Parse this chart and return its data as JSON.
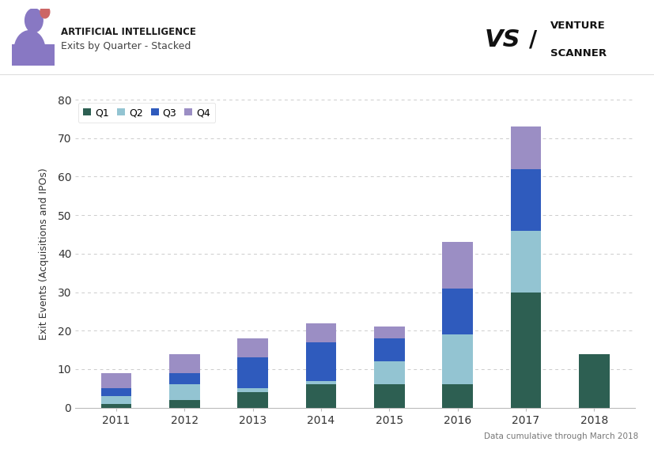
{
  "years": [
    "2011",
    "2012",
    "2013",
    "2014",
    "2015",
    "2016",
    "2017",
    "2018"
  ],
  "Q1": [
    1,
    2,
    4,
    6,
    6,
    6,
    30,
    14
  ],
  "Q2": [
    2,
    4,
    1,
    1,
    6,
    13,
    16,
    0
  ],
  "Q3": [
    2,
    3,
    8,
    10,
    6,
    12,
    16,
    0
  ],
  "Q4": [
    4,
    5,
    5,
    5,
    3,
    12,
    11,
    0
  ],
  "colors": {
    "Q1": "#2d5f52",
    "Q2": "#93c4d2",
    "Q3": "#2f5bbd",
    "Q4": "#9b8ec4"
  },
  "title_line1": "ARTIFICIAL INTELLIGENCE",
  "title_line2": "Exits by Quarter - Stacked",
  "ylabel": "Exit Events (Acquisitions and IPOs)",
  "ylim": [
    0,
    80
  ],
  "yticks": [
    0,
    10,
    20,
    30,
    40,
    50,
    60,
    70,
    80
  ],
  "footnote": "Data cumulative through March 2018",
  "bg_color": "#ffffff",
  "grid_color": "#cccccc",
  "bar_width": 0.45,
  "icon_color": "#8878c3",
  "icon_dot_color": "#cc6666"
}
